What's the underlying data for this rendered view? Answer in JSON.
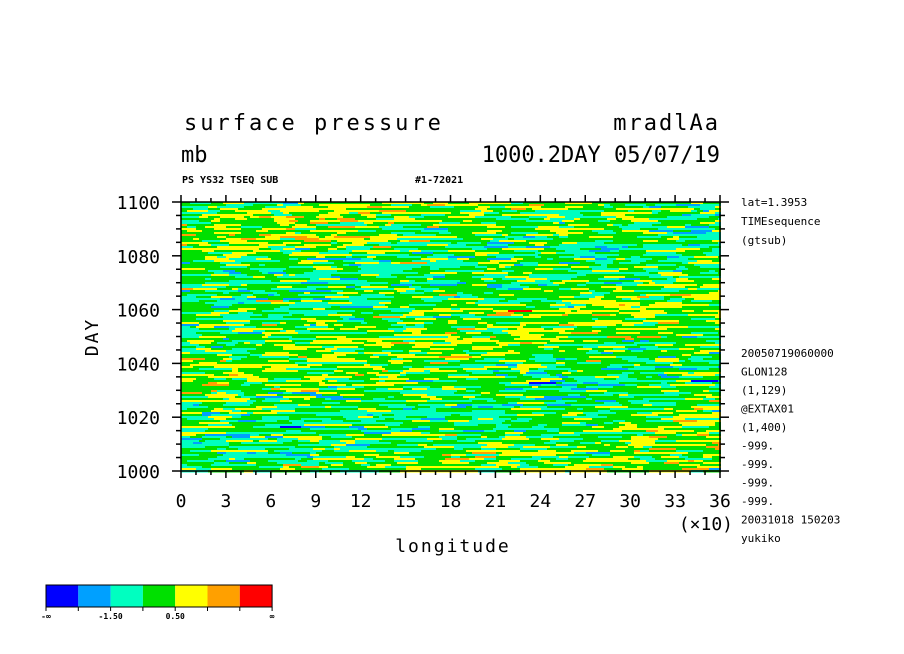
{
  "header": {
    "title": "surface pressure",
    "run_id": "mradlAa",
    "units": "mb",
    "level_date": "1000.2DAY 05/07/19",
    "product_tag": "PS YS32 TSEQ SUB",
    "record_tag": "#1-72021"
  },
  "side_info": {
    "top": [
      "lat=1.3953",
      "TIMEsequence",
      "(gtsub)"
    ],
    "bottom": [
      "20050719060000",
      "GLON128",
      "(1,129)",
      "@EXTAX01",
      "(1,400)",
      "-999.",
      "-999.",
      "-999.",
      "-999.",
      "20031018 150203",
      "yukiko"
    ]
  },
  "chart_data": {
    "type": "heatmap",
    "xlabel": "longitude",
    "x_multiplier": "(×10)",
    "ylabel": "DAY",
    "xlim": [
      0,
      36
    ],
    "ylim": [
      1000,
      1100
    ],
    "x_ticks": [
      "0",
      "3",
      "6",
      "9",
      "12",
      "15",
      "18",
      "21",
      "24",
      "27",
      "30",
      "33",
      "36"
    ],
    "y_ticks": [
      "1000",
      "1020",
      "1040",
      "1060",
      "1080",
      "1100"
    ],
    "colorbar": {
      "colors": [
        "#0000ff",
        "#00a0ff",
        "#00ffc0",
        "#00e000",
        "#ffff00",
        "#ffa000",
        "#ff0000"
      ],
      "labels": [
        "-∞",
        "-1.50",
        "0.50",
        "∞"
      ]
    },
    "grid": false
  }
}
